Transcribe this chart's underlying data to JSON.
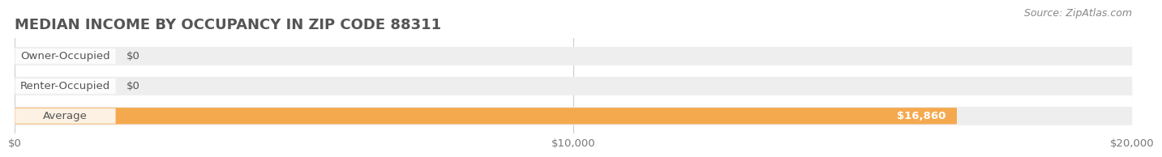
{
  "title": "MEDIAN INCOME BY OCCUPANCY IN ZIP CODE 88311",
  "source": "Source: ZipAtlas.com",
  "categories": [
    "Owner-Occupied",
    "Renter-Occupied",
    "Average"
  ],
  "values": [
    0,
    0,
    16860
  ],
  "bar_colors": [
    "#7dd4d4",
    "#c9a8d4",
    "#f5a94e"
  ],
  "bg_track_color": "#eeeeee",
  "bar_label_colors": [
    "#555555",
    "#555555",
    "#ffffff"
  ],
  "value_labels": [
    "$0",
    "$0",
    "$16,860"
  ],
  "xlim": [
    0,
    20000
  ],
  "xticks": [
    0,
    10000,
    20000
  ],
  "xtick_labels": [
    "$0",
    "$10,000",
    "$20,000"
  ],
  "title_fontsize": 13,
  "label_fontsize": 9.5,
  "source_fontsize": 9,
  "background_color": "#ffffff",
  "title_color": "#555555",
  "source_color": "#888888",
  "category_label_color": "#555555"
}
